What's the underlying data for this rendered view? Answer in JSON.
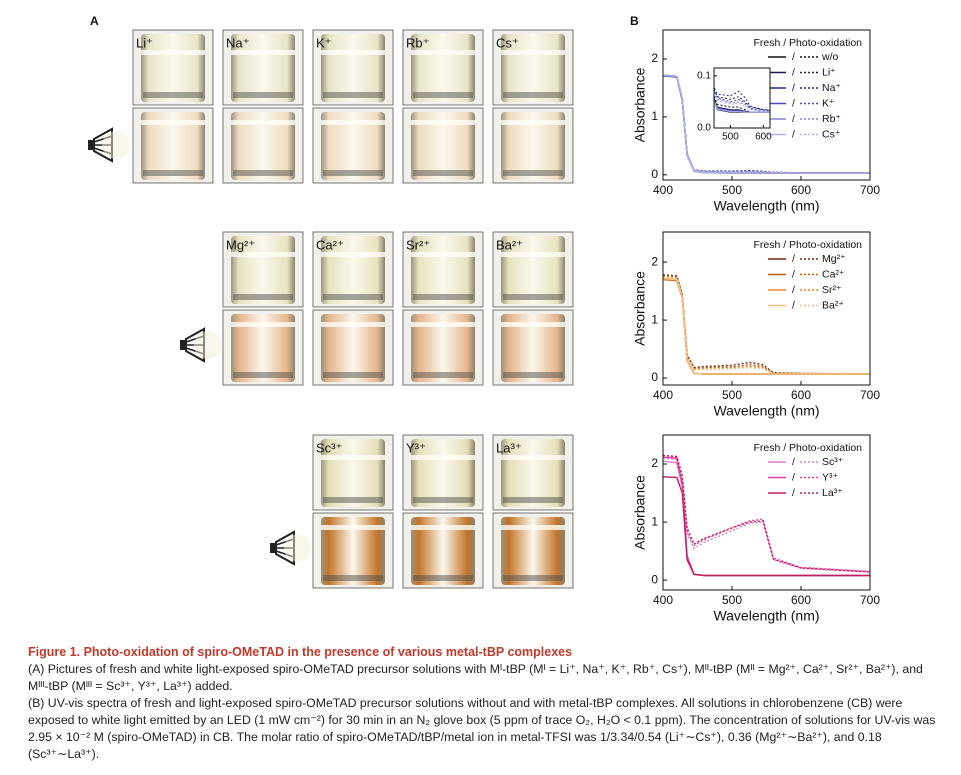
{
  "panel_a": {
    "label": "A",
    "groups": [
      {
        "ions": [
          "Li⁺",
          "Na⁺",
          "K⁺",
          "Rb⁺",
          "Cs⁺"
        ],
        "fresh_color": "#e9e5c9",
        "oxidized_color": "#efdcc0"
      },
      {
        "ions": [
          "Mg²⁺",
          "Ca²⁺",
          "Sr²⁺",
          "Ba²⁺"
        ],
        "fresh_color": "#e8e3bf",
        "oxidized_color": "#e6b48a"
      },
      {
        "ions": [
          "Sc³⁺",
          "Y³⁺",
          "La³⁺"
        ],
        "fresh_color": "#e5dfb6",
        "oxidized_color": "#c47428"
      }
    ]
  },
  "panel_b": {
    "label": "B"
  },
  "chart_data": [
    {
      "type": "line",
      "xlabel": "Wavelength (nm)",
      "ylabel": "Absorbance",
      "legend_title": "Fresh / Photo-oxidation",
      "legend_separator": "/",
      "x": [
        400,
        420,
        428,
        435,
        445,
        460,
        500,
        525,
        545,
        560,
        600,
        700
      ],
      "xlim": [
        400,
        700
      ],
      "xticks": [
        400,
        500,
        600,
        700
      ],
      "ylim": [
        -0.09,
        2.5
      ],
      "yticks": [
        0,
        1,
        2
      ],
      "series": [
        {
          "name": "w/o",
          "color": "#111111",
          "values": [
            1.72,
            1.7,
            1.3,
            0.35,
            0.06,
            0.035,
            0.03,
            0.03,
            0.03,
            0.03,
            0.03,
            0.03
          ],
          "photo_values": [
            1.72,
            1.7,
            1.32,
            0.37,
            0.07,
            0.045,
            0.04,
            0.04,
            0.035,
            0.03,
            0.03,
            0.03
          ]
        },
        {
          "name": "Li⁺",
          "color": "#1c1c50",
          "values": [
            1.71,
            1.69,
            1.28,
            0.34,
            0.065,
            0.04,
            0.035,
            0.035,
            0.032,
            0.03,
            0.03,
            0.03
          ],
          "photo_values": [
            1.71,
            1.69,
            1.3,
            0.36,
            0.08,
            0.06,
            0.055,
            0.06,
            0.05,
            0.04,
            0.035,
            0.03
          ]
        },
        {
          "name": "Na⁺",
          "color": "#26268a",
          "values": [
            1.72,
            1.7,
            1.29,
            0.35,
            0.065,
            0.04,
            0.034,
            0.034,
            0.032,
            0.03,
            0.03,
            0.03
          ],
          "photo_values": [
            1.72,
            1.7,
            1.31,
            0.37,
            0.085,
            0.065,
            0.062,
            0.07,
            0.058,
            0.042,
            0.035,
            0.03
          ]
        },
        {
          "name": "K⁺",
          "color": "#4848c8",
          "values": [
            1.71,
            1.7,
            1.3,
            0.35,
            0.06,
            0.038,
            0.033,
            0.033,
            0.031,
            0.03,
            0.03,
            0.03
          ],
          "photo_values": [
            1.71,
            1.7,
            1.31,
            0.36,
            0.08,
            0.058,
            0.05,
            0.055,
            0.048,
            0.038,
            0.033,
            0.03
          ]
        },
        {
          "name": "Rb⁺",
          "color": "#8484d4",
          "values": [
            1.72,
            1.7,
            1.3,
            0.34,
            0.06,
            0.037,
            0.032,
            0.032,
            0.03,
            0.03,
            0.03,
            0.03
          ],
          "photo_values": [
            1.72,
            1.7,
            1.31,
            0.36,
            0.075,
            0.055,
            0.048,
            0.05,
            0.045,
            0.036,
            0.032,
            0.03
          ]
        },
        {
          "name": "Cs⁺",
          "color": "#b2b2ea",
          "values": [
            1.72,
            1.7,
            1.31,
            0.35,
            0.06,
            0.036,
            0.031,
            0.031,
            0.03,
            0.03,
            0.03,
            0.03
          ],
          "photo_values": [
            1.72,
            1.7,
            1.31,
            0.36,
            0.075,
            0.052,
            0.045,
            0.048,
            0.042,
            0.035,
            0.031,
            0.03
          ]
        }
      ],
      "inset": {
        "xlim": [
          450,
          620
        ],
        "ylim": [
          0,
          0.115
        ],
        "xticks": [
          500,
          600
        ],
        "yticks": [
          {
            "value": 0,
            "label": "0.0"
          },
          {
            "value": 0.1,
            "label": "0.1"
          }
        ]
      }
    },
    {
      "type": "line",
      "xlabel": "Wavelength (nm)",
      "ylabel": "Absorbance",
      "legend_title": "Fresh / Photo-oxidation",
      "legend_separator": "/",
      "x": [
        400,
        420,
        428,
        435,
        445,
        460,
        500,
        525,
        545,
        560,
        600,
        700
      ],
      "xlim": [
        400,
        700
      ],
      "xticks": [
        400,
        500,
        600,
        700
      ],
      "ylim": [
        -0.12,
        2.52
      ],
      "yticks": [
        0,
        1,
        2
      ],
      "series": [
        {
          "name": "Mg²⁺",
          "color": "#7a2a10",
          "values": [
            1.72,
            1.7,
            1.4,
            0.3,
            0.08,
            0.07,
            0.07,
            0.07,
            0.07,
            0.07,
            0.07,
            0.07
          ],
          "photo_values": [
            1.78,
            1.76,
            1.45,
            0.4,
            0.18,
            0.2,
            0.22,
            0.27,
            0.23,
            0.09,
            0.08,
            0.07
          ]
        },
        {
          "name": "Ca²⁺",
          "color": "#c25a10",
          "values": [
            1.7,
            1.68,
            1.38,
            0.3,
            0.08,
            0.07,
            0.07,
            0.07,
            0.07,
            0.07,
            0.07,
            0.07
          ],
          "photo_values": [
            1.76,
            1.74,
            1.43,
            0.38,
            0.16,
            0.18,
            0.19,
            0.23,
            0.2,
            0.09,
            0.08,
            0.07
          ]
        },
        {
          "name": "Sr²⁺",
          "color": "#f08a30",
          "values": [
            1.71,
            1.69,
            1.39,
            0.3,
            0.08,
            0.07,
            0.07,
            0.07,
            0.07,
            0.07,
            0.07,
            0.07
          ],
          "photo_values": [
            1.75,
            1.73,
            1.42,
            0.37,
            0.15,
            0.16,
            0.17,
            0.2,
            0.18,
            0.08,
            0.075,
            0.07
          ]
        },
        {
          "name": "Ba²⁺",
          "color": "#f0c384",
          "values": [
            1.72,
            1.7,
            1.4,
            0.3,
            0.08,
            0.07,
            0.07,
            0.07,
            0.07,
            0.07,
            0.07,
            0.07
          ],
          "photo_values": [
            1.74,
            1.72,
            1.41,
            0.36,
            0.14,
            0.15,
            0.16,
            0.18,
            0.16,
            0.08,
            0.075,
            0.07
          ]
        }
      ]
    },
    {
      "type": "line",
      "xlabel": "Wavelength (nm)",
      "ylabel": "Absorbance",
      "legend_title": "Fresh / Photo-oxidation",
      "legend_separator": "/",
      "x": [
        400,
        420,
        428,
        435,
        445,
        460,
        500,
        525,
        545,
        560,
        600,
        700
      ],
      "xlim": [
        400,
        700
      ],
      "xticks": [
        400,
        500,
        600,
        700
      ],
      "ylim": [
        -0.17,
        2.5
      ],
      "yticks": [
        0,
        1,
        2
      ],
      "series": [
        {
          "name": "Sc³⁺",
          "color": "#e07ed2",
          "values": [
            2.05,
            2.02,
            1.6,
            0.4,
            0.1,
            0.08,
            0.08,
            0.08,
            0.08,
            0.08,
            0.08,
            0.08
          ],
          "photo_values": [
            2.1,
            2.08,
            1.7,
            0.8,
            0.55,
            0.65,
            0.85,
            0.98,
            1.0,
            0.35,
            0.2,
            0.14
          ]
        },
        {
          "name": "Y³⁺",
          "color": "#e040a2",
          "values": [
            2.12,
            2.1,
            1.65,
            0.42,
            0.1,
            0.08,
            0.08,
            0.08,
            0.08,
            0.08,
            0.08,
            0.08
          ],
          "photo_values": [
            2.15,
            2.12,
            1.75,
            0.85,
            0.6,
            0.7,
            0.9,
            1.02,
            1.05,
            0.38,
            0.22,
            0.15
          ]
        },
        {
          "name": "La³⁺",
          "color": "#c2205a",
          "values": [
            1.78,
            1.77,
            1.5,
            0.35,
            0.1,
            0.08,
            0.08,
            0.08,
            0.08,
            0.08,
            0.08,
            0.08
          ],
          "photo_values": [
            2.15,
            2.13,
            1.8,
            0.9,
            0.62,
            0.72,
            0.9,
            1.0,
            1.02,
            0.36,
            0.21,
            0.14
          ]
        }
      ]
    }
  ],
  "caption": {
    "title": "Figure 1. Photo-oxidation of spiro-OMeTAD in the presence of various metal-tBP complexes",
    "paragraphs": [
      "(A) Pictures of fresh and white light-exposed spiro-OMeTAD precursor solutions with Mᴵ-tBP (Mᴵ = Li⁺, Na⁺, K⁺, Rb⁺, Cs⁺), Mᴵᴵ-tBP (Mᴵᴵ = Mg²⁺, Ca²⁺, Sr²⁺, Ba²⁺), and Mᴵᴵᴵ-tBP (Mᴵᴵᴵ = Sc³⁺, Y³⁺, La³⁺) added.",
      "(B) UV-vis spectra of fresh and light-exposed spiro-OMeTAD precursor solutions without and with metal-tBP complexes. All solutions in chlorobenzene (CB) were exposed to white light emitted by an LED (1 mW cm⁻²) for 30 min in an N₂ glove box (5 ppm of trace O₂, H₂O < 0.1 ppm). The concentration of solutions for UV-vis was 2.95 × 10⁻² M (spiro-OMeTAD) in CB. The molar ratio of spiro-OMeTAD/tBP/metal ion in metal-TFSI was 1/3.34/0.54 (Li⁺∼Cs⁺), 0.36 (Mg²⁺∼Ba²⁺), and 0.18 (Sc³⁺∼La³⁺)."
    ]
  }
}
